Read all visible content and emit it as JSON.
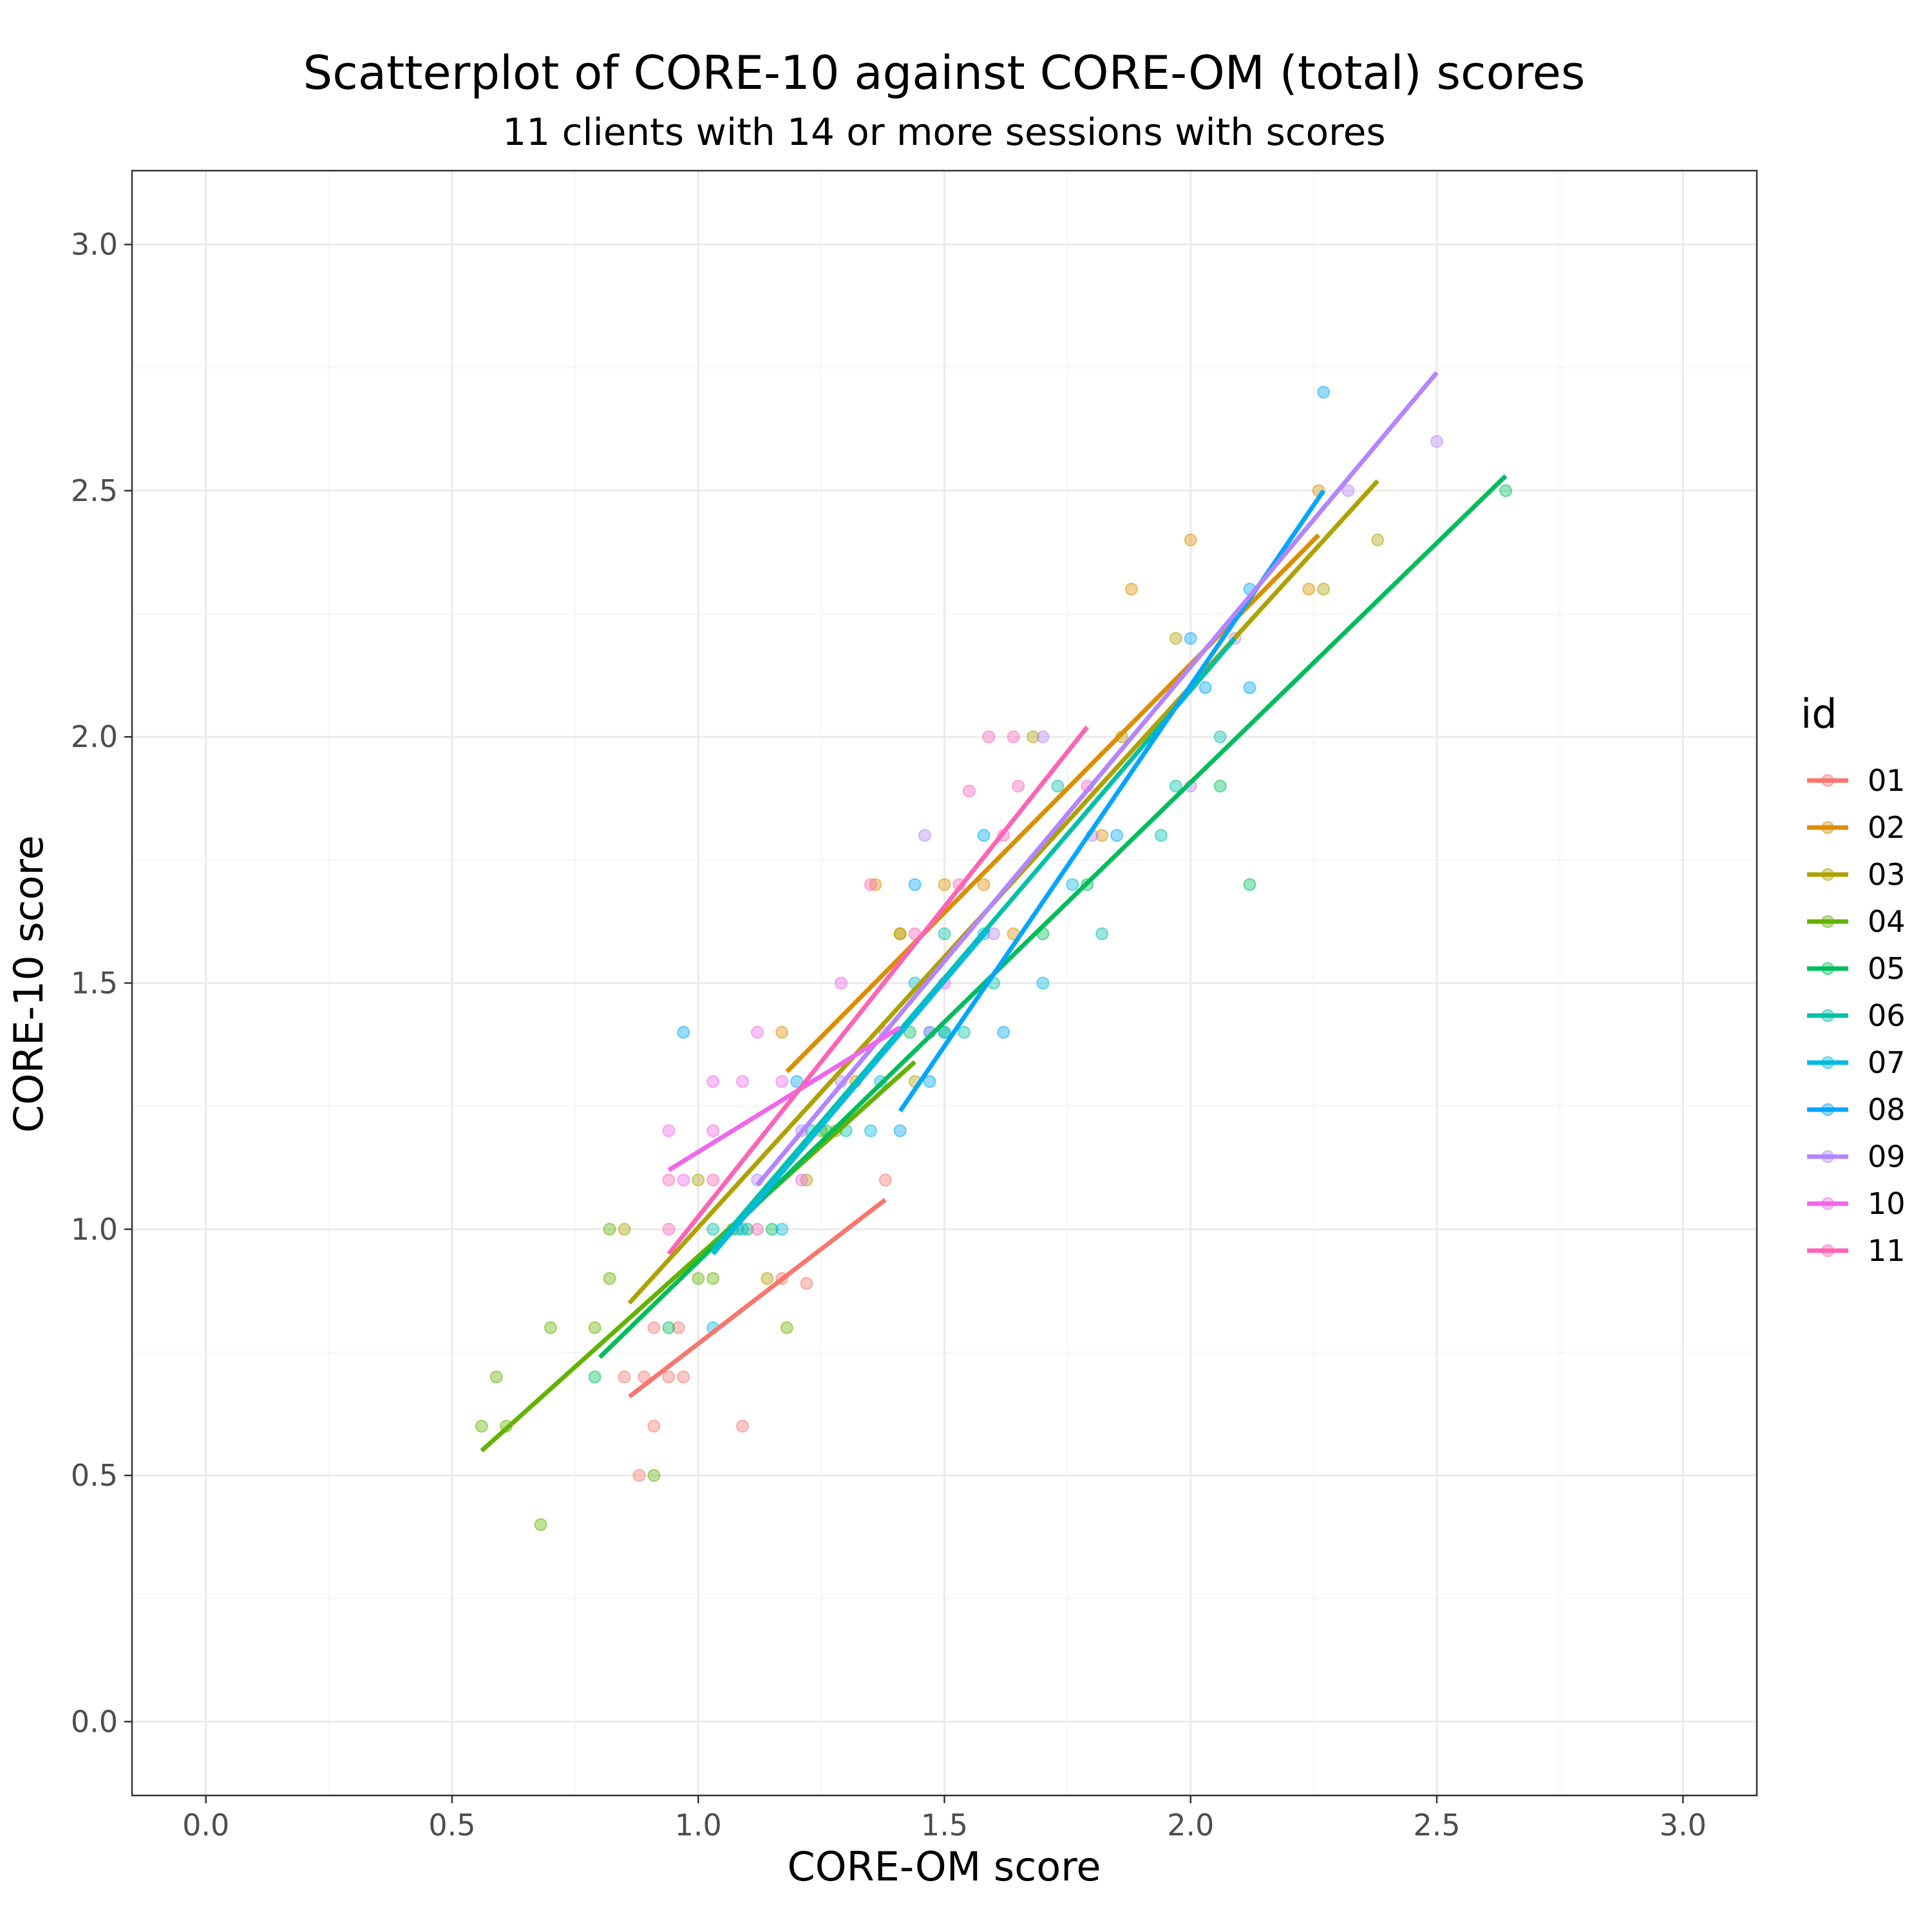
{
  "chart_data": {
    "type": "scatter",
    "title": "Scatterplot of CORE-10 against CORE-OM (total) scores",
    "subtitle": "11 clients with 14 or more sessions with scores",
    "xlabel": "CORE-OM score",
    "ylabel": "CORE-10 score",
    "xlim": [
      -0.15,
      3.15
    ],
    "ylim": [
      -0.15,
      3.15
    ],
    "x_ticks": [
      "0.0",
      "0.5",
      "1.0",
      "1.5",
      "2.0",
      "2.5",
      "3.0"
    ],
    "y_ticks": [
      "0.0",
      "0.5",
      "1.0",
      "1.5",
      "2.0",
      "2.5",
      "3.0"
    ],
    "grid": true,
    "legend": {
      "title": "id",
      "position": "right"
    },
    "series": [
      {
        "name": "01",
        "color": "#F8766D",
        "points": [
          [
            0.85,
            0.7
          ],
          [
            0.88,
            0.5
          ],
          [
            0.89,
            0.7
          ],
          [
            0.91,
            0.8
          ],
          [
            0.91,
            0.6
          ],
          [
            0.94,
            0.7
          ],
          [
            0.96,
            0.8
          ],
          [
            0.97,
            0.7
          ],
          [
            1.09,
            0.6
          ],
          [
            1.17,
            0.9
          ],
          [
            1.22,
            0.89
          ],
          [
            1.38,
            1.1
          ]
        ],
        "fit": [
          [
            0.86,
            0.66
          ],
          [
            1.38,
            1.06
          ]
        ]
      },
      {
        "name": "02",
        "color": "#DB8E00",
        "points": [
          [
            1.17,
            1.4
          ],
          [
            1.32,
            1.3
          ],
          [
            1.36,
            1.7
          ],
          [
            1.41,
            1.6
          ],
          [
            1.5,
            1.7
          ],
          [
            1.58,
            1.7
          ],
          [
            1.64,
            1.6
          ],
          [
            1.82,
            1.8
          ],
          [
            1.88,
            2.3
          ],
          [
            2.0,
            2.4
          ],
          [
            2.24,
            2.3
          ],
          [
            2.26,
            2.5
          ]
        ],
        "fit": [
          [
            1.18,
            1.32
          ],
          [
            2.26,
            2.41
          ]
        ]
      },
      {
        "name": "03",
        "color": "#AEA200",
        "points": [
          [
            0.85,
            1.0
          ],
          [
            1.0,
            1.1
          ],
          [
            1.14,
            0.9
          ],
          [
            1.22,
            1.1
          ],
          [
            1.28,
            1.2
          ],
          [
            1.41,
            1.6
          ],
          [
            1.44,
            1.3
          ],
          [
            1.68,
            2.0
          ],
          [
            1.86,
            2.0
          ],
          [
            1.97,
            2.2
          ],
          [
            2.27,
            2.3
          ],
          [
            2.38,
            2.4
          ]
        ],
        "fit": [
          [
            0.86,
            0.85
          ],
          [
            2.38,
            2.52
          ]
        ]
      },
      {
        "name": "04",
        "color": "#64B200",
        "points": [
          [
            0.56,
            0.6
          ],
          [
            0.59,
            0.7
          ],
          [
            0.61,
            0.6
          ],
          [
            0.68,
            0.4
          ],
          [
            0.7,
            0.8
          ],
          [
            0.79,
            0.8
          ],
          [
            0.82,
            1.0
          ],
          [
            0.82,
            0.9
          ],
          [
            0.91,
            0.5
          ],
          [
            1.0,
            0.9
          ],
          [
            1.03,
            0.9
          ],
          [
            1.07,
            1.0
          ],
          [
            1.18,
            0.8
          ],
          [
            1.25,
            1.2
          ]
        ],
        "fit": [
          [
            0.56,
            0.55
          ],
          [
            1.44,
            1.34
          ]
        ]
      },
      {
        "name": "05",
        "color": "#00BD5C",
        "points": [
          [
            0.79,
            0.7
          ],
          [
            0.94,
            0.8
          ],
          [
            1.1,
            1.0
          ],
          [
            1.15,
            1.0
          ],
          [
            1.26,
            1.2
          ],
          [
            1.43,
            1.4
          ],
          [
            1.5,
            1.4
          ],
          [
            1.7,
            1.6
          ],
          [
            1.79,
            1.7
          ],
          [
            2.06,
            1.9
          ],
          [
            2.12,
            1.7
          ],
          [
            2.64,
            2.5
          ]
        ],
        "fit": [
          [
            0.8,
            0.74
          ],
          [
            2.64,
            2.53
          ]
        ]
      },
      {
        "name": "06",
        "color": "#00C1A7",
        "points": [
          [
            1.03,
            1.0
          ],
          [
            1.08,
            1.0
          ],
          [
            1.23,
            1.2
          ],
          [
            1.3,
            1.2
          ],
          [
            1.5,
            1.6
          ],
          [
            1.54,
            1.4
          ],
          [
            1.6,
            1.5
          ],
          [
            1.73,
            1.9
          ],
          [
            1.82,
            1.6
          ],
          [
            1.94,
            1.8
          ],
          [
            1.97,
            1.9
          ],
          [
            2.06,
            2.0
          ]
        ],
        "fit": [
          [
            1.03,
            0.96
          ],
          [
            2.09,
            2.2
          ]
        ]
      },
      {
        "name": "07",
        "color": "#00BADE",
        "points": [
          [
            1.03,
            0.8
          ],
          [
            1.09,
            1.0
          ],
          [
            1.17,
            1.0
          ],
          [
            1.35,
            1.2
          ],
          [
            1.37,
            1.3
          ],
          [
            1.44,
            1.5
          ],
          [
            1.47,
            1.4
          ],
          [
            1.5,
            1.4
          ],
          [
            1.58,
            1.6
          ],
          [
            1.7,
            1.5
          ],
          [
            1.76,
            1.7
          ]
        ],
        "fit": [
          [
            1.03,
            0.95
          ],
          [
            1.59,
            1.61
          ]
        ]
      },
      {
        "name": "08",
        "color": "#00A6FF",
        "points": [
          [
            0.97,
            1.4
          ],
          [
            1.2,
            1.3
          ],
          [
            1.41,
            1.2
          ],
          [
            1.44,
            1.7
          ],
          [
            1.47,
            1.3
          ],
          [
            1.58,
            1.8
          ],
          [
            1.62,
            1.4
          ],
          [
            1.85,
            1.8
          ],
          [
            2.0,
            2.2
          ],
          [
            2.03,
            2.1
          ],
          [
            2.12,
            2.1
          ],
          [
            2.12,
            2.3
          ],
          [
            2.27,
            2.7
          ]
        ],
        "fit": [
          [
            1.41,
            1.24
          ],
          [
            2.27,
            2.5
          ]
        ]
      },
      {
        "name": "09",
        "color": "#B385FF",
        "points": [
          [
            1.12,
            1.1
          ],
          [
            1.21,
            1.2
          ],
          [
            1.29,
            1.3
          ],
          [
            1.46,
            1.8
          ],
          [
            1.47,
            1.4
          ],
          [
            1.6,
            1.6
          ],
          [
            1.7,
            2.0
          ],
          [
            1.8,
            1.8
          ],
          [
            2.0,
            1.9
          ],
          [
            2.09,
            2.2
          ],
          [
            2.32,
            2.5
          ],
          [
            2.5,
            2.6
          ]
        ],
        "fit": [
          [
            1.12,
            1.09
          ],
          [
            2.5,
            2.74
          ]
        ]
      },
      {
        "name": "10",
        "color": "#EF67EB",
        "points": [
          [
            0.94,
            1.2
          ],
          [
            0.97,
            1.1
          ],
          [
            1.03,
            1.3
          ],
          [
            1.03,
            1.2
          ],
          [
            1.09,
            1.3
          ],
          [
            1.12,
            1.4
          ],
          [
            1.17,
            1.3
          ],
          [
            1.21,
            1.1
          ],
          [
            1.29,
            1.5
          ],
          [
            1.38,
            1.4
          ],
          [
            1.5,
            1.5
          ]
        ],
        "fit": [
          [
            0.94,
            1.12
          ],
          [
            1.41,
            1.41
          ]
        ]
      },
      {
        "name": "11",
        "color": "#FF63B6",
        "points": [
          [
            0.94,
            1.1
          ],
          [
            0.94,
            1.0
          ],
          [
            1.03,
            1.1
          ],
          [
            1.12,
            1.0
          ],
          [
            1.35,
            1.7
          ],
          [
            1.44,
            1.6
          ],
          [
            1.53,
            1.7
          ],
          [
            1.55,
            1.89
          ],
          [
            1.59,
            2.0
          ],
          [
            1.62,
            1.8
          ],
          [
            1.64,
            2.0
          ],
          [
            1.65,
            1.9
          ],
          [
            1.79,
            1.9
          ]
        ],
        "fit": [
          [
            0.94,
            0.95
          ],
          [
            1.79,
            2.02
          ]
        ]
      }
    ]
  }
}
